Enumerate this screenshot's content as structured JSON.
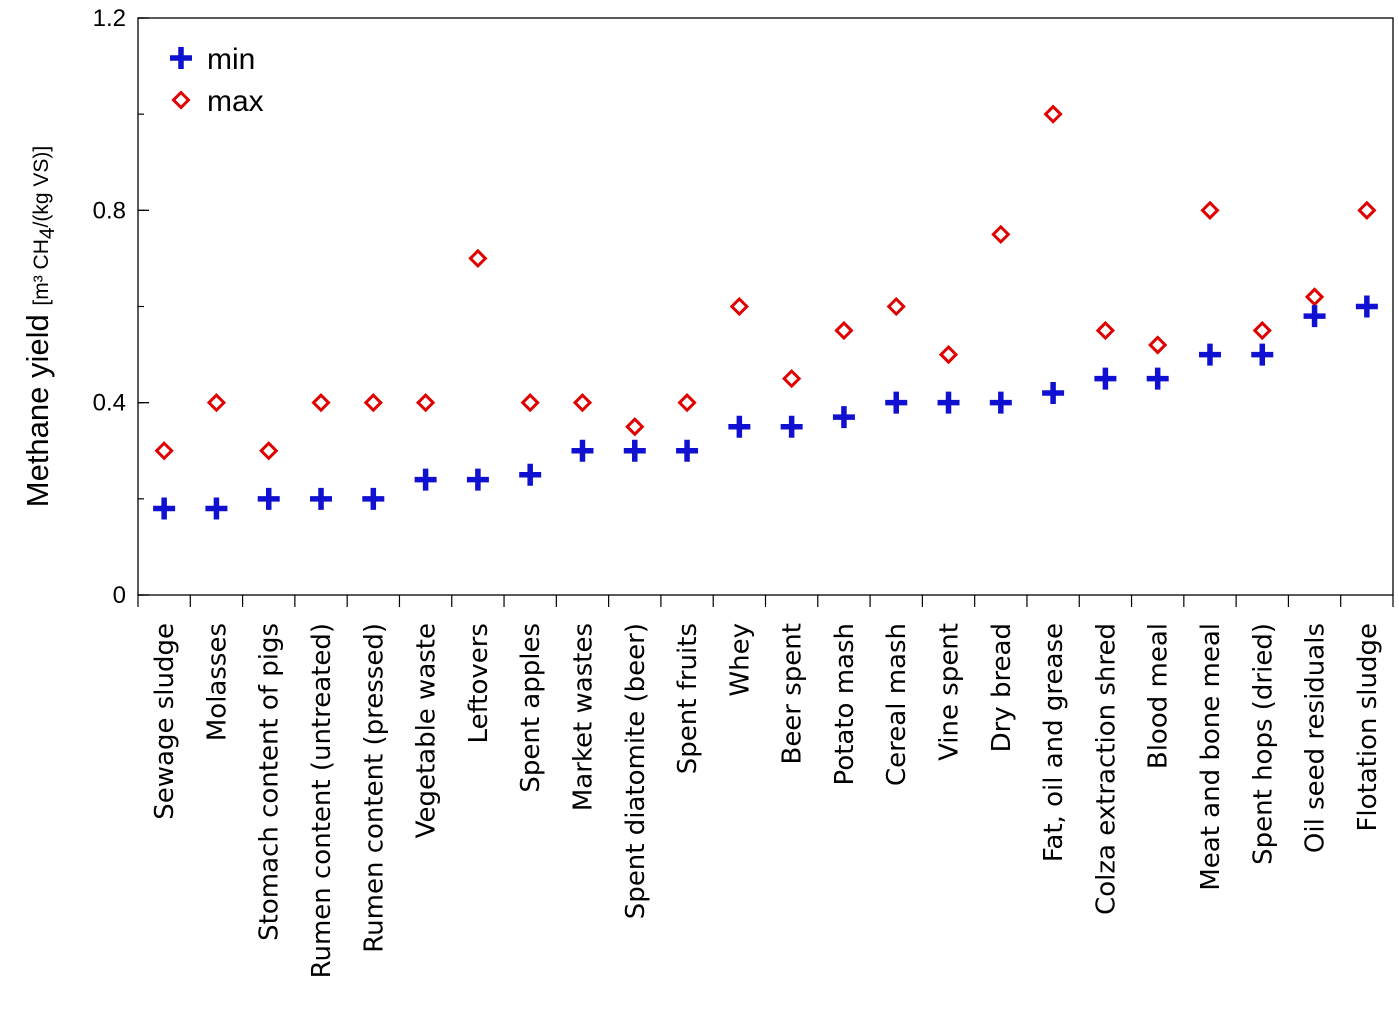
{
  "chart_data": {
    "type": "scatter",
    "ylabel_main": "Methane yield",
    "ylabel_unit_parts": [
      "[m³ CH",
      "4",
      "/(kg VS)]"
    ],
    "ylim": [
      0,
      1.2
    ],
    "yticks": [
      0,
      0.4,
      0.8,
      1.2
    ],
    "ytick_labels": [
      "0",
      "0.4",
      "0.8",
      "1.2"
    ],
    "grid": false,
    "legend_position": "top-left",
    "categories": [
      "Sewage sludge",
      "Molasses",
      "Stomach content of pigs",
      "Rumen content (untreated)",
      "Rumen content (pressed)",
      "Vegetable waste",
      "Leftovers",
      "Spent apples",
      "Market wastes",
      "Spent diatomite (beer)",
      "Spent fruits",
      "Whey",
      "Beer spent",
      "Potato mash",
      "Cereal mash",
      "Vine spent",
      "Dry bread",
      "Fat, oil and grease",
      "Colza extraction shred",
      "Blood meal",
      "Meat and bone meal",
      "Spent hops (dried)",
      "Oil seed residuals",
      "Flotation sludge"
    ],
    "series": [
      {
        "name": "min",
        "marker": "plus",
        "color": "#1010d0",
        "values": [
          0.18,
          0.18,
          0.2,
          0.2,
          0.2,
          0.24,
          0.24,
          0.25,
          0.3,
          0.3,
          0.3,
          0.35,
          0.35,
          0.37,
          0.4,
          0.4,
          0.4,
          0.42,
          0.45,
          0.45,
          0.5,
          0.5,
          0.58,
          0.6
        ]
      },
      {
        "name": "max",
        "marker": "diamond",
        "color": "#e00000",
        "values": [
          0.3,
          0.4,
          0.3,
          0.4,
          0.4,
          0.4,
          0.7,
          0.4,
          0.4,
          0.35,
          0.4,
          0.6,
          0.45,
          0.55,
          0.6,
          0.5,
          0.75,
          1.0,
          0.55,
          0.52,
          0.8,
          0.55,
          0.62,
          0.8
        ]
      }
    ]
  }
}
